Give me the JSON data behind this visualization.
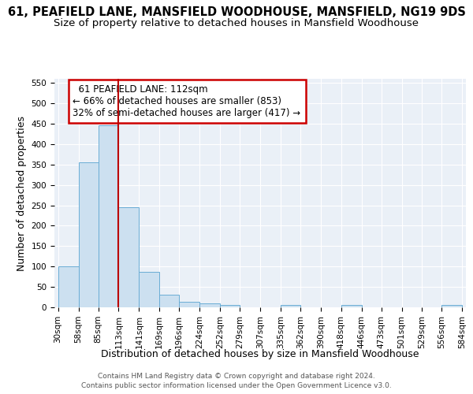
{
  "title": "61, PEAFIELD LANE, MANSFIELD WOODHOUSE, MANSFIELD, NG19 9DS",
  "subtitle": "Size of property relative to detached houses in Mansfield Woodhouse",
  "xlabel": "Distribution of detached houses by size in Mansfield Woodhouse",
  "ylabel": "Number of detached properties",
  "footer_line1": "Contains HM Land Registry data © Crown copyright and database right 2024.",
  "footer_line2": "Contains public sector information licensed under the Open Government Licence v3.0.",
  "annotation_line1": "61 PEAFIELD LANE: 112sqm",
  "annotation_line2": "← 66% of detached houses are smaller (853)",
  "annotation_line3": "32% of semi-detached houses are larger (417) →",
  "bar_edges": [
    30,
    58,
    85,
    113,
    141,
    169,
    196,
    224,
    252,
    279,
    307,
    335,
    362,
    390,
    418,
    446,
    473,
    501,
    529,
    556,
    584
  ],
  "bar_heights": [
    100,
    355,
    447,
    245,
    87,
    30,
    14,
    9,
    6,
    0,
    0,
    6,
    0,
    0,
    6,
    0,
    0,
    0,
    0,
    6
  ],
  "bar_color": "#cce0f0",
  "bar_edge_color": "#6aadd5",
  "vline_x": 113,
  "vline_color": "#bb0000",
  "annotation_box_color": "white",
  "annotation_box_edge": "#cc0000",
  "ylim": [
    0,
    560
  ],
  "yticks": [
    0,
    50,
    100,
    150,
    200,
    250,
    300,
    350,
    400,
    450,
    500,
    550
  ],
  "background_color": "#eaf0f7",
  "grid_color": "white",
  "title_fontsize": 10.5,
  "subtitle_fontsize": 9.5,
  "label_fontsize": 9,
  "tick_fontsize": 7.5,
  "annotation_fontsize": 8.5,
  "footer_fontsize": 6.5
}
